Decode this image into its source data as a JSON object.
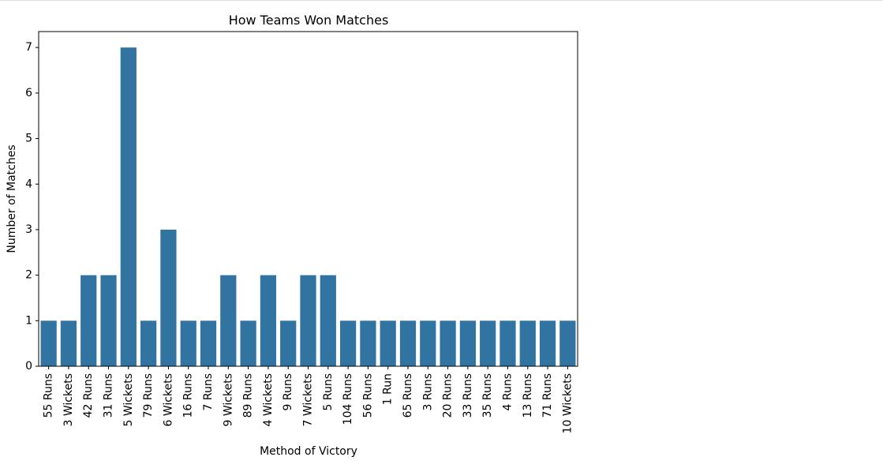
{
  "chart_data": {
    "type": "bar",
    "title": "How Teams Won Matches",
    "xlabel": "Method of Victory",
    "ylabel": "Number of Matches",
    "categories": [
      "55 Runs",
      "3 Wickets",
      "42 Runs",
      "31 Runs",
      "5 Wickets",
      "79 Runs",
      "6 Wickets",
      "16 Runs",
      "7 Runs",
      "9 Wickets",
      "89 Runs",
      "4 Wickets",
      "9 Runs",
      "7 Wickets",
      "5 Runs",
      "104 Runs",
      "56 Runs",
      "1 Run",
      "65 Runs",
      "3 Runs",
      "20 Runs",
      "33 Runs",
      "35 Runs",
      "4 Runs",
      "13 Runs",
      "71 Runs",
      "10 Wickets"
    ],
    "values": [
      1,
      1,
      2,
      2,
      7,
      1,
      3,
      1,
      1,
      2,
      1,
      2,
      1,
      2,
      2,
      1,
      1,
      1,
      1,
      1,
      1,
      1,
      1,
      1,
      1,
      1,
      1
    ],
    "ylim": [
      0,
      7.35
    ],
    "yticks": [
      0,
      1,
      2,
      3,
      4,
      5,
      6,
      7
    ],
    "bar_color": "#3274a1",
    "grid": false
  }
}
